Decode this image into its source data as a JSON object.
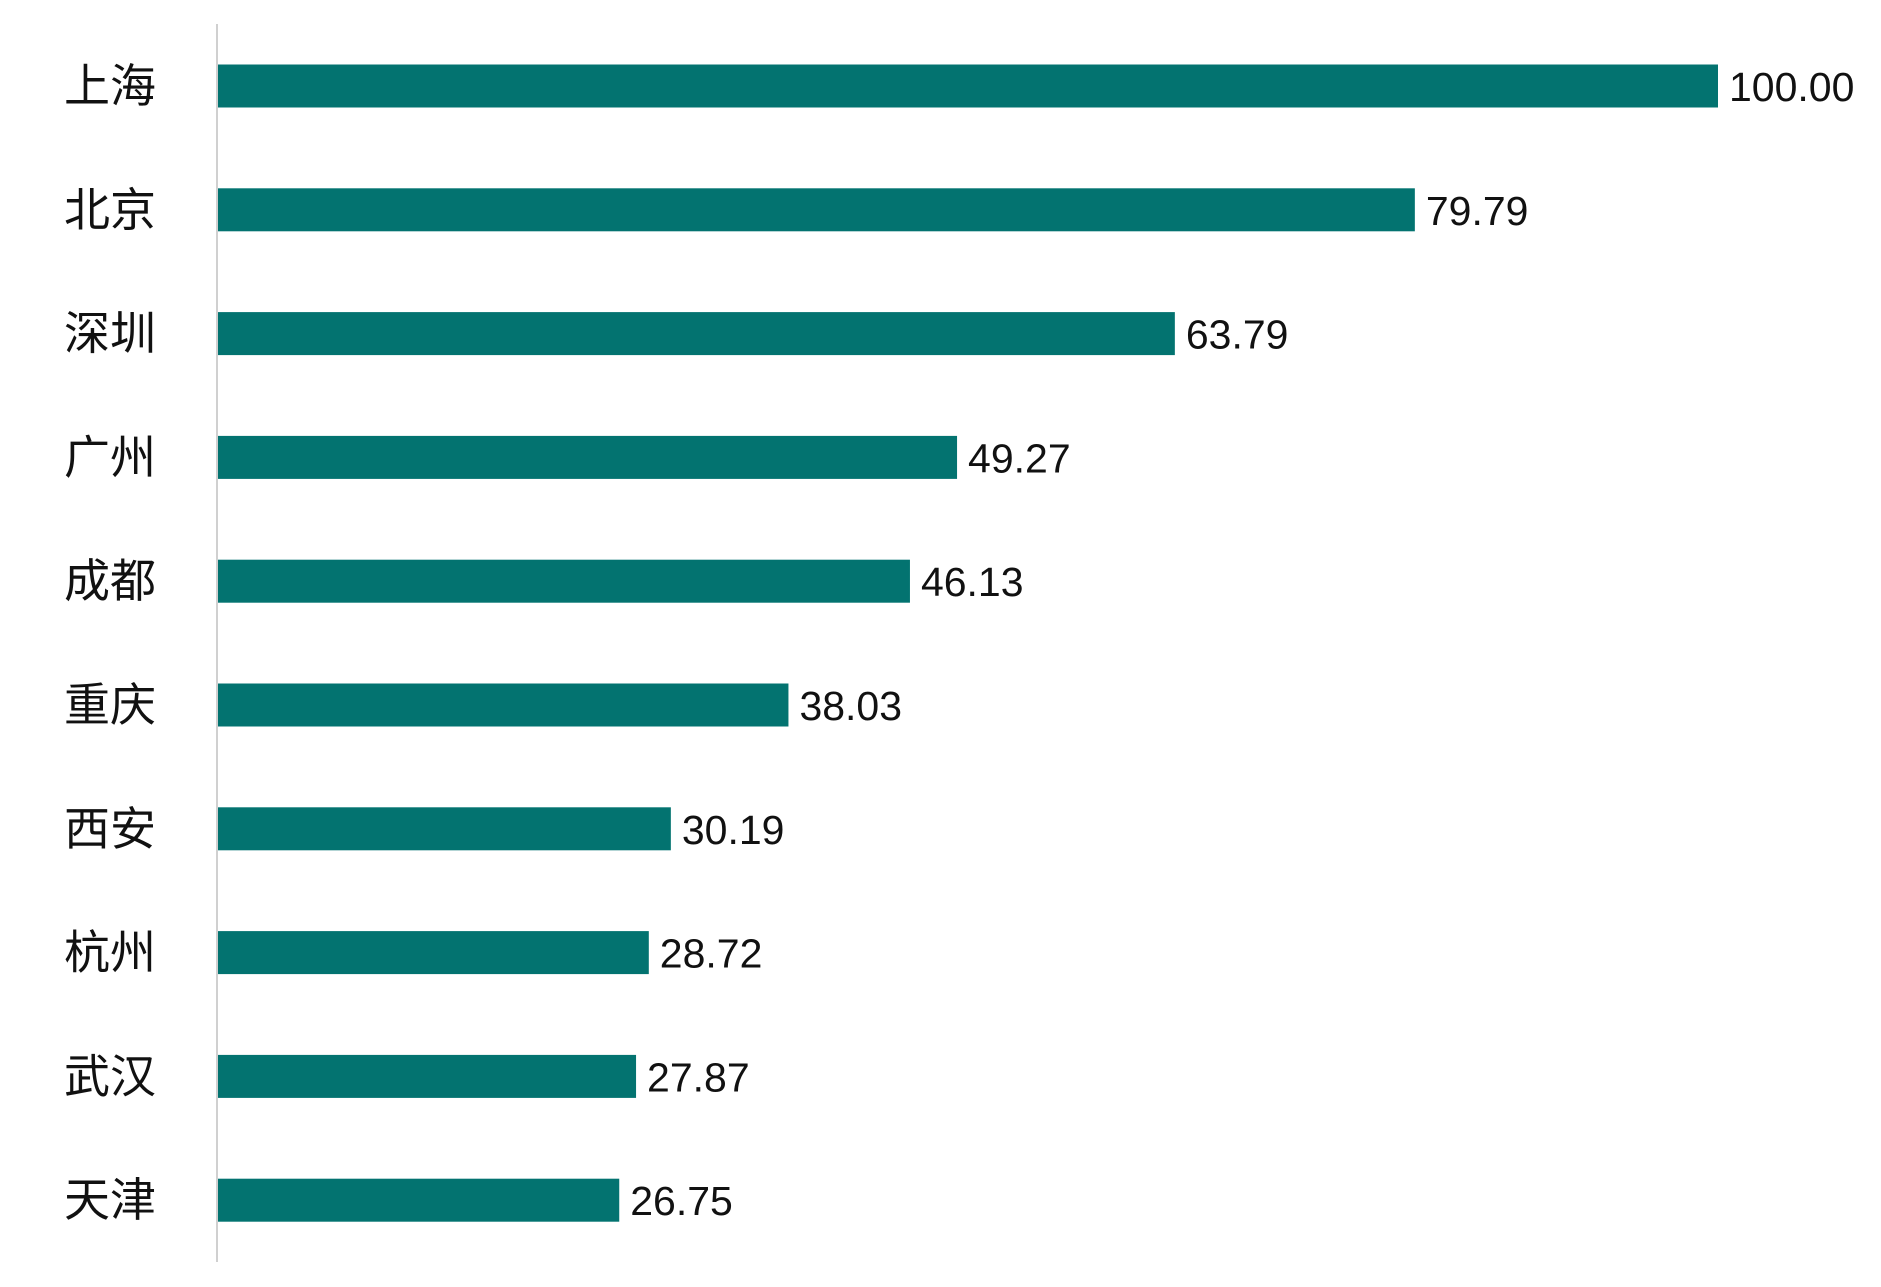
{
  "chart_data": {
    "type": "bar",
    "orientation": "horizontal",
    "title": "",
    "xlabel": "",
    "ylabel": "",
    "categories": [
      "上海",
      "北京",
      "深圳",
      "广州",
      "成都",
      "重庆",
      "西安",
      "杭州",
      "武汉",
      "天津"
    ],
    "values": [
      100.0,
      79.79,
      63.79,
      49.27,
      46.13,
      38.03,
      30.19,
      28.72,
      27.87,
      26.75
    ],
    "value_labels": [
      "100.00",
      "79.79",
      "63.79",
      "49.27",
      "46.13",
      "38.03",
      "30.19",
      "28.72",
      "27.87",
      "26.75"
    ],
    "xlim": [
      0,
      100
    ],
    "grid": false,
    "legend": "none",
    "bar_color": "#037370",
    "axis_color": "#d0d0d0"
  }
}
